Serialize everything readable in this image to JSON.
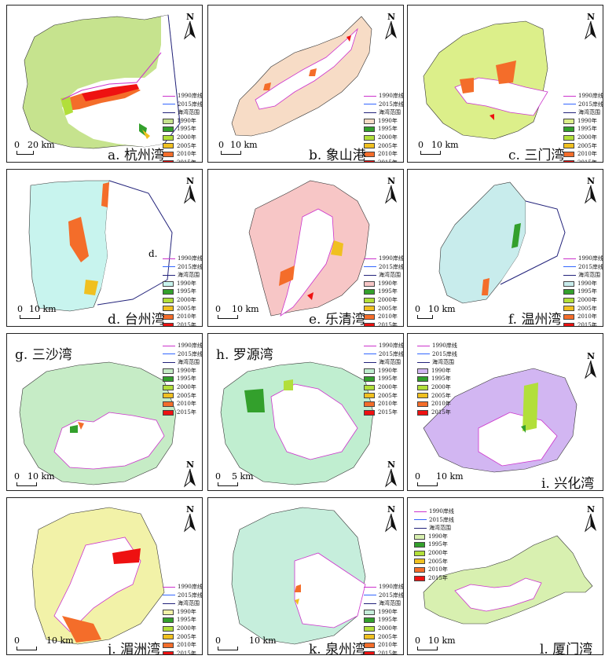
{
  "legend_lines": [
    {
      "label": "1990岸线",
      "color": "#cc33cc"
    },
    {
      "label": "2015岸线",
      "color": "#3366ff"
    },
    {
      "label": "海湾范围",
      "color": "#22227a"
    }
  ],
  "legend_years": [
    {
      "label": "1995年",
      "color": "#33a02c"
    },
    {
      "label": "2000年",
      "color": "#b2df3a"
    },
    {
      "label": "2005年",
      "color": "#f0c020"
    },
    {
      "label": "2010年",
      "color": "#f46d2a"
    },
    {
      "label": "2015年",
      "color": "#ee1111"
    }
  ],
  "north_label": "N",
  "scale_zero": "0",
  "panels": [
    {
      "id": "a",
      "title": "a. 杭州湾",
      "base_label": "1990年",
      "base_color": "#c6e38e",
      "scale": "20 km"
    },
    {
      "id": "b",
      "title": "b. 象山港",
      "base_label": "1990年",
      "base_color": "#f7dcc6",
      "scale": "10 km"
    },
    {
      "id": "c",
      "title": "c. 三门湾",
      "base_label": "1990年",
      "base_color": "#dcef8a",
      "scale": "10 km"
    },
    {
      "id": "d",
      "title": "d. 台州湾",
      "base_label": "1990年",
      "base_color": "#c8f4ee",
      "scale": "10 km",
      "extra_label": "d."
    },
    {
      "id": "e",
      "title": "e. 乐清湾",
      "base_label": "1990年",
      "base_color": "#f7c6c6",
      "scale": "10 km"
    },
    {
      "id": "f",
      "title": "f. 温州湾",
      "base_label": "1990年",
      "base_color": "#c8ecec",
      "scale": "10 km"
    },
    {
      "id": "g",
      "title": "g. 三沙湾",
      "base_label": "1990年",
      "base_color": "#c6ecc6",
      "scale": "10 km"
    },
    {
      "id": "h",
      "title": "h. 罗源湾",
      "base_label": "1990年",
      "base_color": "#c0eed0",
      "scale": "5 km"
    },
    {
      "id": "i",
      "title": "i. 兴化湾",
      "base_label": "1990年",
      "base_color": "#d2b6f2",
      "scale": "10 km"
    },
    {
      "id": "j",
      "title": "j. 湄洲湾",
      "base_label": "1990年",
      "base_color": "#f2f2a8",
      "scale": "10 km"
    },
    {
      "id": "k",
      "title": "k. 泉州湾",
      "base_label": "1990年",
      "base_color": "#c6eedc",
      "scale": "10 km"
    },
    {
      "id": "l",
      "title": "l. 厦门湾",
      "base_label": "1990年",
      "base_color": "#d8f0b0",
      "scale": "10 km"
    }
  ]
}
